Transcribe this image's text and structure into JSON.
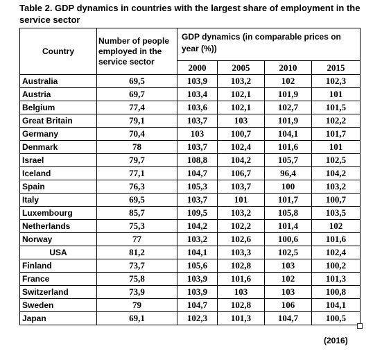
{
  "title": "Table 2. GDP dynamics in countries with the largest share of employment in the service sector",
  "headers": {
    "country": "Country",
    "people": "Number of people employed in the service sector",
    "gdp": "GDP dynamics (in comparable prices on year (%))",
    "years": [
      "2000",
      "2005",
      "2010",
      "2015"
    ]
  },
  "rows": [
    {
      "country": "Australia",
      "people": "69,5",
      "v": [
        "103,9",
        "103,2",
        "102",
        "102,3"
      ]
    },
    {
      "country": "Austria",
      "people": "69,7",
      "v": [
        "103,4",
        "102,1",
        "101,9",
        "101"
      ]
    },
    {
      "country": "Belgium",
      "people": "77,4",
      "v": [
        "103,6",
        "102,1",
        "102,7",
        "101,5"
      ]
    },
    {
      "country": "Great Britain",
      "people": "79,1",
      "v": [
        "103,7",
        "103",
        "101,9",
        "102,2"
      ]
    },
    {
      "country": "Germany",
      "people": "70,4",
      "v": [
        "103",
        "100,7",
        "104,1",
        "101,7"
      ]
    },
    {
      "country": "Denmark",
      "people": "78",
      "v": [
        "103,7",
        "102,4",
        "101,6",
        "101"
      ]
    },
    {
      "country": "Israel",
      "people": "79,7",
      "v": [
        "108,8",
        "104,2",
        "105,7",
        "102,5"
      ]
    },
    {
      "country": "Iceland",
      "people": "77,1",
      "v": [
        "104,7",
        "106,7",
        "96,4",
        "104,2"
      ]
    },
    {
      "country": "Spain",
      "people": "76,3",
      "v": [
        "105,3",
        "103,7",
        "100",
        "103,2"
      ]
    },
    {
      "country": "Italy",
      "people": "69,5",
      "v": [
        "103,7",
        "101",
        "101,7",
        "100,7"
      ]
    },
    {
      "country": "Luxembourg",
      "people": "85,7",
      "v": [
        "109,5",
        "103,2",
        "105,8",
        "103,5"
      ]
    },
    {
      "country": "Netherlands",
      "people": "75,3",
      "v": [
        "104,2",
        "102,2",
        "101,4",
        "102"
      ]
    },
    {
      "country": "Norway",
      "people": "77",
      "v": [
        "103,2",
        "102,6",
        "100,6",
        "101,6"
      ]
    },
    {
      "country": "USA",
      "people": "81,2",
      "v": [
        "104,1",
        "103,3",
        "102,5",
        "102,4"
      ]
    },
    {
      "country": "Finland",
      "people": "73,7",
      "v": [
        "105,6",
        "102,8",
        "103",
        "100,2"
      ]
    },
    {
      "country": "France",
      "people": "75,8",
      "v": [
        "103,9",
        "101,6",
        "102",
        "101,3"
      ]
    },
    {
      "country": "Switzerland",
      "people": "73,9",
      "v": [
        "103,9",
        "103",
        "103",
        "100,8"
      ]
    },
    {
      "country": "Sweden",
      "people": "79",
      "v": [
        "104,7",
        "102,8",
        "106",
        "104,1"
      ]
    },
    {
      "country": "Japan",
      "people": "69,1",
      "v": [
        "102,3",
        "101,3",
        "104,7",
        "100,5"
      ]
    }
  ],
  "note": "(2016)"
}
